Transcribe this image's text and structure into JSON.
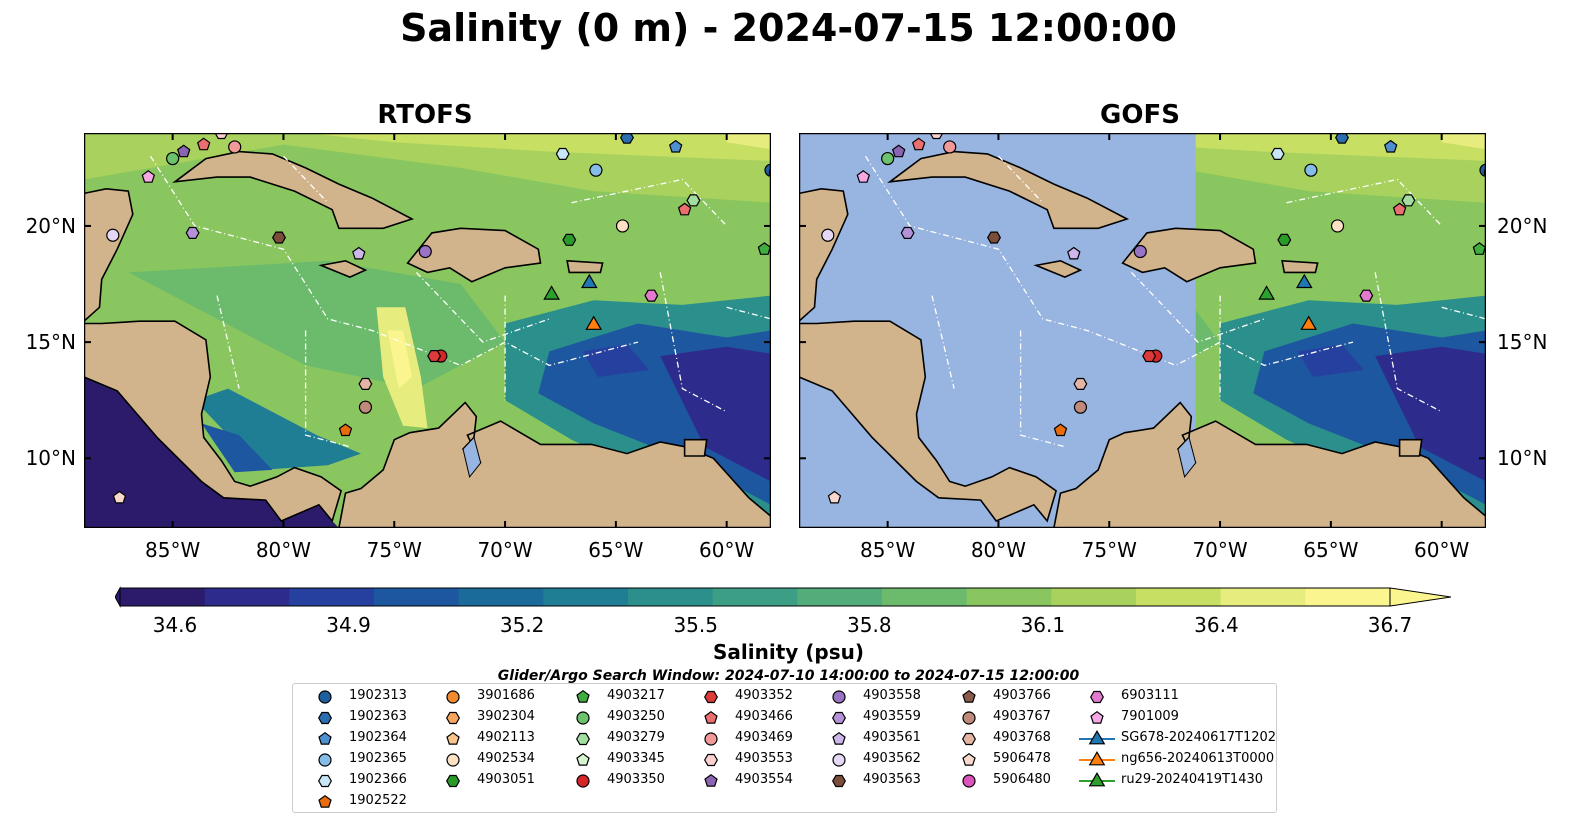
{
  "title": "Salinity (0 m) - 2024-07-15 12:00:00",
  "panels": [
    {
      "title": "RTOFS"
    },
    {
      "title": "GOFS"
    }
  ],
  "axes": {
    "lon_labels": [
      "85°W",
      "80°W",
      "75°W",
      "70°W",
      "65°W",
      "60°W"
    ],
    "lon_values": [
      -85,
      -80,
      -75,
      -70,
      -65,
      -60
    ],
    "lat_labels": [
      "20°N",
      "15°N",
      "10°N"
    ],
    "lat_values": [
      20,
      15,
      10
    ],
    "lon_range": [
      -89,
      -58
    ],
    "lat_range": [
      7,
      24
    ]
  },
  "colorbar": {
    "label": "Salinity (psu)",
    "ticks": [
      "34.6",
      "34.9",
      "35.2",
      "35.5",
      "35.8",
      "36.1",
      "36.4",
      "36.7"
    ],
    "range": [
      34.6,
      36.7
    ],
    "extend": "both",
    "colors": [
      "#2c1b6b",
      "#2d2c8c",
      "#26409f",
      "#1d579f",
      "#1b6b9a",
      "#1f7d94",
      "#2b8f8c",
      "#3c9e84",
      "#53ad7a",
      "#6cbb6c",
      "#8ac65f",
      "#a8d25d",
      "#c7df63",
      "#e7ec7f",
      "#fbf58f"
    ]
  },
  "window_note": "Glider/Argo Search Window: 2024-07-10 14:00:00 to 2024-07-15 12:00:00",
  "colors": {
    "land": "#d2b48c",
    "ocean_gofs_masked": "#98b4e0",
    "deep_salinity": "#2c1b6b"
  },
  "legend": [
    {
      "label": "1902313",
      "color": "#1f5f9f",
      "shape": "circle"
    },
    {
      "label": "1902363",
      "color": "#2a6eb0",
      "shape": "hexagon"
    },
    {
      "label": "1902364",
      "color": "#4f8fd0",
      "shape": "pentagon"
    },
    {
      "label": "1902365",
      "color": "#86bde6",
      "shape": "circle"
    },
    {
      "label": "1902366",
      "color": "#c9e6f7",
      "shape": "hexagon"
    },
    {
      "label": "1902522",
      "color": "#e86c0d",
      "shape": "pentagon"
    },
    {
      "label": "3901686",
      "color": "#f28a30",
      "shape": "circle"
    },
    {
      "label": "3902304",
      "color": "#f7a65f",
      "shape": "hexagon"
    },
    {
      "label": "4902113",
      "color": "#f9c48e",
      "shape": "pentagon"
    },
    {
      "label": "4902534",
      "color": "#fde1c2",
      "shape": "circle"
    },
    {
      "label": "4903051",
      "color": "#2a9a2a",
      "shape": "hexagon"
    },
    {
      "label": "4903217",
      "color": "#3fae3f",
      "shape": "pentagon"
    },
    {
      "label": "4903250",
      "color": "#6cc36c",
      "shape": "circle"
    },
    {
      "label": "4903279",
      "color": "#a3dea0",
      "shape": "hexagon"
    },
    {
      "label": "4903345",
      "color": "#d6f5cf",
      "shape": "pentagon"
    },
    {
      "label": "4903350",
      "color": "#d62728",
      "shape": "circle"
    },
    {
      "label": "4903352",
      "color": "#dd3a3a",
      "shape": "hexagon"
    },
    {
      "label": "4903466",
      "color": "#ec6f6f",
      "shape": "pentagon"
    },
    {
      "label": "4903469",
      "color": "#f29a9a",
      "shape": "circle"
    },
    {
      "label": "4903553",
      "color": "#fcd0d0",
      "shape": "hexagon"
    },
    {
      "label": "4903554",
      "color": "#8c64b4",
      "shape": "pentagon"
    },
    {
      "label": "4903558",
      "color": "#9a74c4",
      "shape": "circle"
    },
    {
      "label": "4903559",
      "color": "#b392d8",
      "shape": "hexagon"
    },
    {
      "label": "4903561",
      "color": "#cdb6ea",
      "shape": "pentagon"
    },
    {
      "label": "4903562",
      "color": "#e5d8f6",
      "shape": "circle"
    },
    {
      "label": "4903563",
      "color": "#7a4e3a",
      "shape": "hexagon"
    },
    {
      "label": "4903766",
      "color": "#8c5a4a",
      "shape": "pentagon"
    },
    {
      "label": "4903767",
      "color": "#c08a7a",
      "shape": "circle"
    },
    {
      "label": "4903768",
      "color": "#e4b4a4",
      "shape": "hexagon"
    },
    {
      "label": "5906478",
      "color": "#f8d7cc",
      "shape": "pentagon"
    },
    {
      "label": "5906480",
      "color": "#dd55bb",
      "shape": "circle"
    },
    {
      "label": "6903111",
      "color": "#e27ad0",
      "shape": "hexagon"
    },
    {
      "label": "7901009",
      "color": "#f4a8e4",
      "shape": "pentagon"
    },
    {
      "label": "SG678-20240617T1202",
      "color": "#1f77b4",
      "shape": "triangle"
    },
    {
      "label": "ng656-20240613T0000",
      "color": "#ff7f0e",
      "shape": "triangle"
    },
    {
      "label": "ru29-20240419T1430",
      "color": "#2ca02c",
      "shape": "triangle"
    }
  ],
  "floats": [
    {
      "id": "1902313",
      "lon": -58,
      "lat": 22.4
    },
    {
      "id": "1902363",
      "lon": -64.5,
      "lat": 23.8
    },
    {
      "id": "1902364",
      "lon": -62.3,
      "lat": 23.4
    },
    {
      "id": "1902365",
      "lon": -65.9,
      "lat": 22.4
    },
    {
      "id": "1902366",
      "lon": -67.4,
      "lat": 23.1
    },
    {
      "id": "1902522",
      "lon": -77.2,
      "lat": 11.2
    },
    {
      "id": "3901686",
      "lon": -57.8,
      "lat": 22.3
    },
    {
      "id": "4902534",
      "lon": -64.7,
      "lat": 20
    },
    {
      "id": "4903217",
      "lon": -58.3,
      "lat": 19
    },
    {
      "id": "4903250",
      "lon": -85,
      "lat": 22.9
    },
    {
      "id": "4903279",
      "lon": -61.5,
      "lat": 21.1
    },
    {
      "id": "4903350",
      "lon": -72.9,
      "lat": 14.4
    },
    {
      "id": "4903352",
      "lon": -73.2,
      "lat": 14.4
    },
    {
      "id": "4903466",
      "lon": -83.6,
      "lat": 23.5
    },
    {
      "id": "4903469",
      "lon": -82.2,
      "lat": 23.4
    },
    {
      "id": "4903553",
      "lon": -82.8,
      "lat": 24
    },
    {
      "id": "4903554",
      "lon": -84.5,
      "lat": 23.2
    },
    {
      "id": "4903558",
      "lon": -73.6,
      "lat": 18.9
    },
    {
      "id": "4903559",
      "lon": -84.1,
      "lat": 19.7
    },
    {
      "id": "4903561",
      "lon": -76.6,
      "lat": 18.8
    },
    {
      "id": "4903562",
      "lon": -87.7,
      "lat": 19.6
    },
    {
      "id": "4903563",
      "lon": -80.2,
      "lat": 19.5
    },
    {
      "id": "4903767",
      "lon": -76.3,
      "lat": 12.2
    },
    {
      "id": "4903768",
      "lon": -76.3,
      "lat": 13.2
    },
    {
      "id": "5906478",
      "lon": -87.4,
      "lat": 8.3
    },
    {
      "id": "6903111",
      "lon": -63.4,
      "lat": 17
    },
    {
      "id": "7901009",
      "lon": -86.1,
      "lat": 22.1
    },
    {
      "id": "4903051",
      "lon": -67.1,
      "lat": 19.4
    },
    {
      "id": "4903466",
      "lon": -61.9,
      "lat": 20.7
    }
  ],
  "gliders": [
    {
      "id": "SG678-20240617T1202",
      "lon": -66.2,
      "lat": 17.6
    },
    {
      "id": "ng656-20240613T0000",
      "lon": -66,
      "lat": 15.8
    },
    {
      "id": "ru29-20240419T1430",
      "lon": -67.9,
      "lat": 17.1
    }
  ]
}
